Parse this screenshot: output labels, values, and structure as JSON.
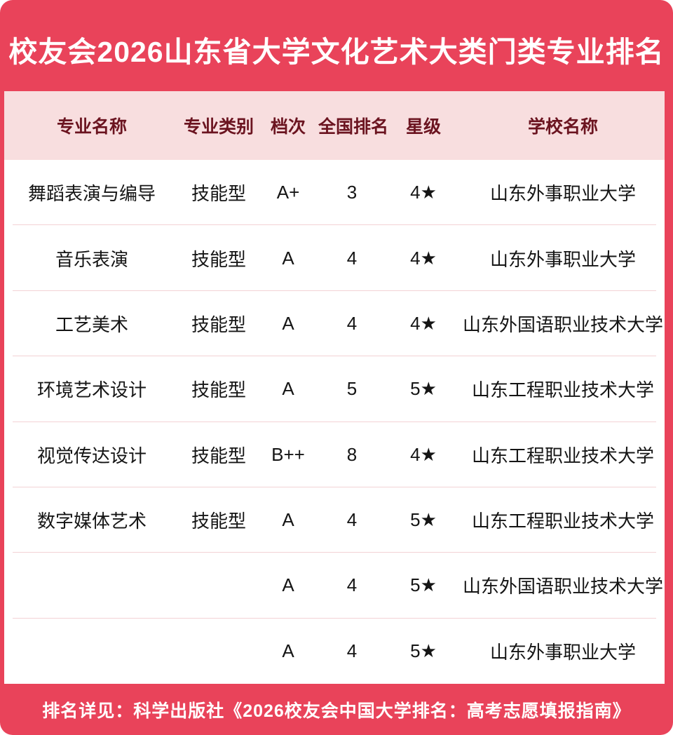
{
  "title": "校友会2026山东省大学文化艺术大类门类专业排名",
  "table": {
    "columns": [
      "专业名称",
      "专业类别",
      "档次",
      "全国排名",
      "星级",
      "学校名称"
    ],
    "rows": [
      [
        "舞蹈表演与编导",
        "技能型",
        "A+",
        "3",
        "4★",
        "山东外事职业大学"
      ],
      [
        "音乐表演",
        "技能型",
        "A",
        "4",
        "4★",
        "山东外事职业大学"
      ],
      [
        "工艺美术",
        "技能型",
        "A",
        "4",
        "4★",
        "山东外国语职业技术大学"
      ],
      [
        "环境艺术设计",
        "技能型",
        "A",
        "5",
        "5★",
        "山东工程职业技术大学"
      ],
      [
        "视觉传达设计",
        "技能型",
        "B++",
        "8",
        "4★",
        "山东工程职业技术大学"
      ],
      [
        "数字媒体艺术",
        "技能型",
        "A",
        "4",
        "5★",
        "山东工程职业技术大学"
      ],
      [
        "",
        "",
        "A",
        "4",
        "5★",
        "山东外国语职业技术大学"
      ],
      [
        "",
        "",
        "A",
        "4",
        "5★",
        "山东外事职业大学"
      ]
    ]
  },
  "footer": {
    "text": "排名详见：科学出版社《2026校友会中国大学排名：高考志愿填报指南》"
  },
  "colors": {
    "accent_red": "#E9435A",
    "table_header_bg": "#F8DEDF",
    "table_header_text": "#6B1420",
    "row_text": "#151515",
    "divider": "#F3D2D5",
    "title_text": "#FFFFFF"
  }
}
